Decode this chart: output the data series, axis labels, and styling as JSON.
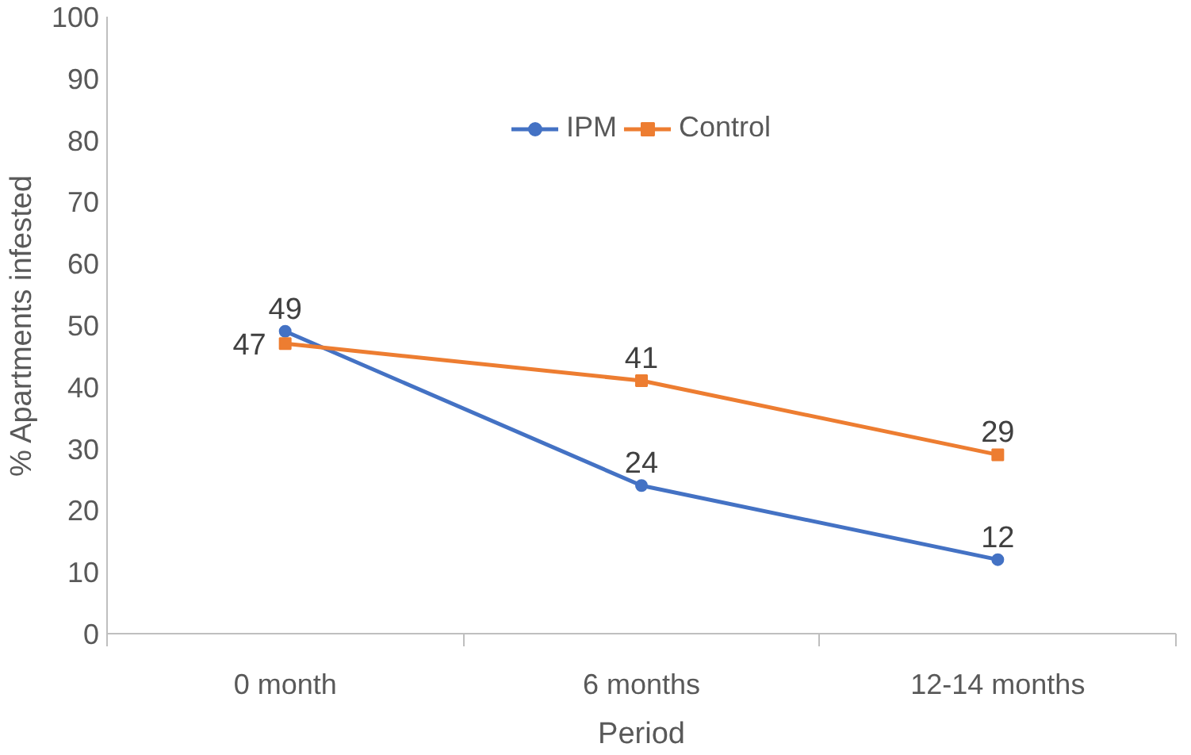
{
  "chart_data": {
    "type": "line",
    "xlabel": "Period",
    "ylabel": "% Apartments infested",
    "categories": [
      "0 month",
      "6 months",
      "12-14 months"
    ],
    "series": [
      {
        "name": "IPM",
        "color": "#4472c4",
        "values": [
          49,
          24,
          12
        ],
        "marker": "circle"
      },
      {
        "name": "Control",
        "color": "#ed7d31",
        "values": [
          47,
          41,
          29
        ],
        "marker": "square"
      }
    ],
    "ylim": [
      0,
      100
    ],
    "yticks": [
      0,
      10,
      20,
      30,
      40,
      50,
      60,
      70,
      80,
      90,
      100
    ],
    "grid": false,
    "legend": "top",
    "data_labels": true
  }
}
